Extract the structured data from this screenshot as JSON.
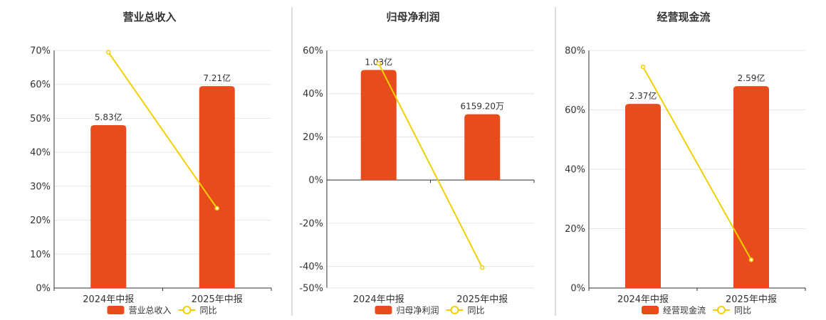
{
  "colors": {
    "bar": "#E84C1C",
    "line": "#F2D000",
    "grid": "#E6E6E6",
    "axis": "#333333",
    "divider": "#BBBBBB"
  },
  "chart_data": [
    {
      "type": "bar",
      "title": "营业总收入",
      "categories": [
        "2024年中报",
        "2025年中报"
      ],
      "bar_series": {
        "name": "营业总收入",
        "value_labels": [
          "5.83亿",
          "7.21亿"
        ],
        "values_pct_axis": [
          48,
          59.5
        ]
      },
      "line_series": {
        "name": "同比",
        "values": [
          69.5,
          23.5
        ]
      },
      "yticks": [
        0,
        10,
        20,
        30,
        40,
        50,
        60,
        70
      ],
      "ytick_labels": [
        "0%",
        "10%",
        "20%",
        "30%",
        "40%",
        "50%",
        "60%",
        "70%"
      ],
      "ylim": [
        0,
        70
      ],
      "legend": [
        "营业总收入",
        "同比"
      ]
    },
    {
      "type": "bar",
      "title": "归母净利润",
      "categories": [
        "2024年中报",
        "2025年中报"
      ],
      "bar_series": {
        "name": "归母净利润",
        "value_labels": [
          "1.03亿",
          "6159.20万"
        ],
        "values_pct_axis": [
          51,
          30.5
        ]
      },
      "line_series": {
        "name": "同比",
        "values": [
          54,
          -40.5
        ]
      },
      "yticks": [
        -50,
        -40,
        -20,
        0,
        20,
        40,
        60
      ],
      "ytick_labels": [
        "-50%",
        "-40%",
        "-20%",
        "0%",
        "20%",
        "40%",
        "60%"
      ],
      "ylim": [
        -50,
        60
      ],
      "legend": [
        "归母净利润",
        "同比"
      ]
    },
    {
      "type": "bar",
      "title": "经营现金流",
      "categories": [
        "2024年中报",
        "2025年中报"
      ],
      "bar_series": {
        "name": "经营现金流",
        "value_labels": [
          "2.37亿",
          "2.59亿"
        ],
        "values_pct_axis": [
          62,
          68
        ]
      },
      "line_series": {
        "name": "同比",
        "values": [
          74.5,
          9.5
        ]
      },
      "yticks": [
        0,
        20,
        40,
        60,
        80
      ],
      "ytick_labels": [
        "0%",
        "20%",
        "40%",
        "60%",
        "80%"
      ],
      "ylim": [
        0,
        80
      ],
      "legend": [
        "经营现金流",
        "同比"
      ]
    }
  ]
}
